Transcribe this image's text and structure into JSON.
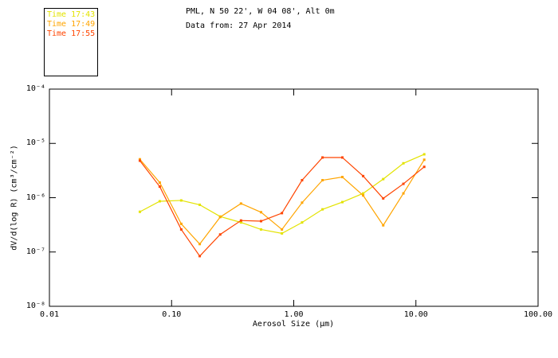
{
  "header": {
    "title_line1": "PML, N 50 22', W 04 08', Alt 0m",
    "title_line2": "Data from: 27 Apr 2014"
  },
  "legend": {
    "items": [
      {
        "label": "Time 17:43",
        "color": "#e3e300"
      },
      {
        "label": "Time 17:49",
        "color": "#ffa500"
      },
      {
        "label": "Time 17:55",
        "color": "#ff4500"
      }
    ]
  },
  "chart_data": {
    "type": "line",
    "scale": "log-log",
    "xlabel": "Aerosol Size (µm)",
    "ylabel": "dV/d(log R) (cm³/cm⁻²)",
    "xlim": [
      0.01,
      100.0
    ],
    "ylim": [
      1e-08,
      0.0001
    ],
    "grid": false,
    "legend_position": "top-left-outside",
    "x_ticks": [
      {
        "label": "0.01",
        "value": 0.01
      },
      {
        "label": "0.10",
        "value": 0.1
      },
      {
        "label": "1.00",
        "value": 1.0
      },
      {
        "label": "10.00",
        "value": 10.0
      },
      {
        "label": "100.00",
        "value": 100.0
      }
    ],
    "y_ticks": [
      {
        "label": "10⁻⁴",
        "value": 0.0001
      },
      {
        "label": "10⁻⁵",
        "value": 1e-05
      },
      {
        "label": "10⁻⁶",
        "value": 1e-06
      },
      {
        "label": "10⁻⁷",
        "value": 1e-07
      },
      {
        "label": "10⁻⁸",
        "value": 1e-08
      }
    ],
    "x": [
      0.055,
      0.08,
      0.12,
      0.17,
      0.25,
      0.37,
      0.54,
      0.8,
      1.17,
      1.72,
      2.5,
      3.7,
      5.4,
      7.9,
      11.7
    ],
    "series": [
      {
        "name": "Time 17:43",
        "color": "#e3e300",
        "values": [
          5.5e-07,
          8.6e-07,
          8.9e-07,
          7.4e-07,
          4.5e-07,
          3.5e-07,
          2.6e-07,
          2.2e-07,
          3.5e-07,
          6.1e-07,
          8.3e-07,
          1.2e-06,
          2.2e-06,
          4.3e-06,
          6.3e-06
        ]
      },
      {
        "name": "Time 17:49",
        "color": "#ffa500",
        "values": [
          5.1e-06,
          1.9e-06,
          3.3e-07,
          1.4e-07,
          4.4e-07,
          7.8e-07,
          5.4e-07,
          2.6e-07,
          8.1e-07,
          2.1e-06,
          2.4e-06,
          1.1e-06,
          3.1e-07,
          1.2e-06,
          5e-06
        ]
      },
      {
        "name": "Time 17:55",
        "color": "#ff4500",
        "values": [
          4.8e-06,
          1.6e-06,
          2.6e-07,
          8.4e-08,
          2.1e-07,
          3.8e-07,
          3.7e-07,
          5.2e-07,
          2.1e-06,
          5.5e-06,
          5.5e-06,
          2.5e-06,
          9.7e-07,
          1.8e-06,
          3.7e-06
        ]
      }
    ]
  }
}
